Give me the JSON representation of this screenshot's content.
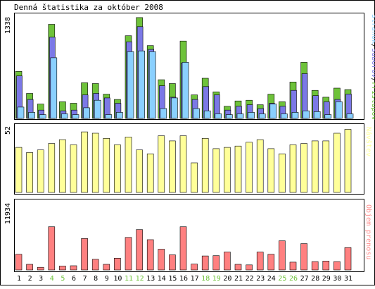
{
  "title": "Denná štatistika za október 2008",
  "days": [
    1,
    2,
    3,
    4,
    5,
    6,
    7,
    8,
    9,
    10,
    11,
    12,
    13,
    14,
    15,
    16,
    17,
    18,
    19,
    20,
    21,
    22,
    23,
    24,
    25,
    26,
    27,
    28,
    29,
    30,
    31
  ],
  "weekend_days": [
    4,
    5,
    11,
    12,
    18,
    19,
    25,
    26
  ],
  "colors": {
    "background": "#ffffff",
    "frame": "#000000",
    "pristupov": "#6ec23a",
    "suborov": "#7b78e6",
    "stranok": "#8ad0ff",
    "navstev": "#ffff99",
    "prenos": "#ff8080",
    "weekend_label": "#6ec23a",
    "legend_pristupov": "#6ec23a",
    "legend_suborov": "#7b78e6",
    "legend_stranok": "#8ad0ff",
    "legend_navstev": "#ffff99",
    "legend_prenos": "#ff9090"
  },
  "chart_data": [
    {
      "type": "bar",
      "name": "hits",
      "ymax_label": "1338",
      "ylim": [
        0,
        1338
      ],
      "legend": [
        "Stránok",
        "Súborov",
        "Prístupov"
      ],
      "series": [
        {
          "name": "Prístupov",
          "values": [
            620,
            330,
            190,
            1240,
            220,
            200,
            470,
            460,
            320,
            250,
            1090,
            1330,
            960,
            510,
            460,
            1020,
            310,
            530,
            350,
            160,
            230,
            240,
            180,
            320,
            220,
            480,
            740,
            370,
            280,
            400,
            380
          ]
        },
        {
          "name": "Súborov",
          "values": [
            560,
            250,
            110,
            1070,
            100,
            110,
            310,
            330,
            270,
            200,
            1010,
            1210,
            910,
            430,
            280,
            730,
            250,
            420,
            310,
            110,
            160,
            180,
            130,
            200,
            160,
            370,
            590,
            300,
            220,
            250,
            320
          ]
        },
        {
          "name": "Stránok",
          "values": [
            150,
            80,
            50,
            800,
            60,
            50,
            140,
            240,
            50,
            80,
            880,
            890,
            880,
            130,
            270,
            740,
            130,
            100,
            60,
            50,
            60,
            80,
            60,
            190,
            60,
            80,
            100,
            90,
            50,
            220,
            60
          ]
        }
      ]
    },
    {
      "type": "bar",
      "name": "visits",
      "ymax_label": "52",
      "ylim": [
        0,
        52
      ],
      "legend": [
        "Návštev"
      ],
      "series": [
        {
          "name": "Návštev",
          "values": [
            35,
            31,
            33,
            38,
            41,
            37,
            47,
            46,
            42,
            37,
            43,
            33,
            30,
            44,
            40,
            44,
            23,
            42,
            34,
            35,
            36,
            39,
            41,
            34,
            30,
            37,
            38,
            40,
            40,
            46,
            49
          ]
        }
      ]
    },
    {
      "type": "bar",
      "name": "bandwidth",
      "ymax_label": "11934",
      "ylim": [
        0,
        11934
      ],
      "legend": [
        "Objem prenosu"
      ],
      "series": [
        {
          "name": "Objem prenosu",
          "values": [
            2800,
            1000,
            480,
            7700,
            700,
            760,
            5600,
            1900,
            1000,
            2100,
            5800,
            7200,
            5400,
            3700,
            2700,
            7700,
            1050,
            2500,
            2550,
            3200,
            1000,
            900,
            3200,
            2800,
            5200,
            1400,
            4700,
            1500,
            1600,
            1500,
            4000
          ]
        }
      ]
    }
  ]
}
